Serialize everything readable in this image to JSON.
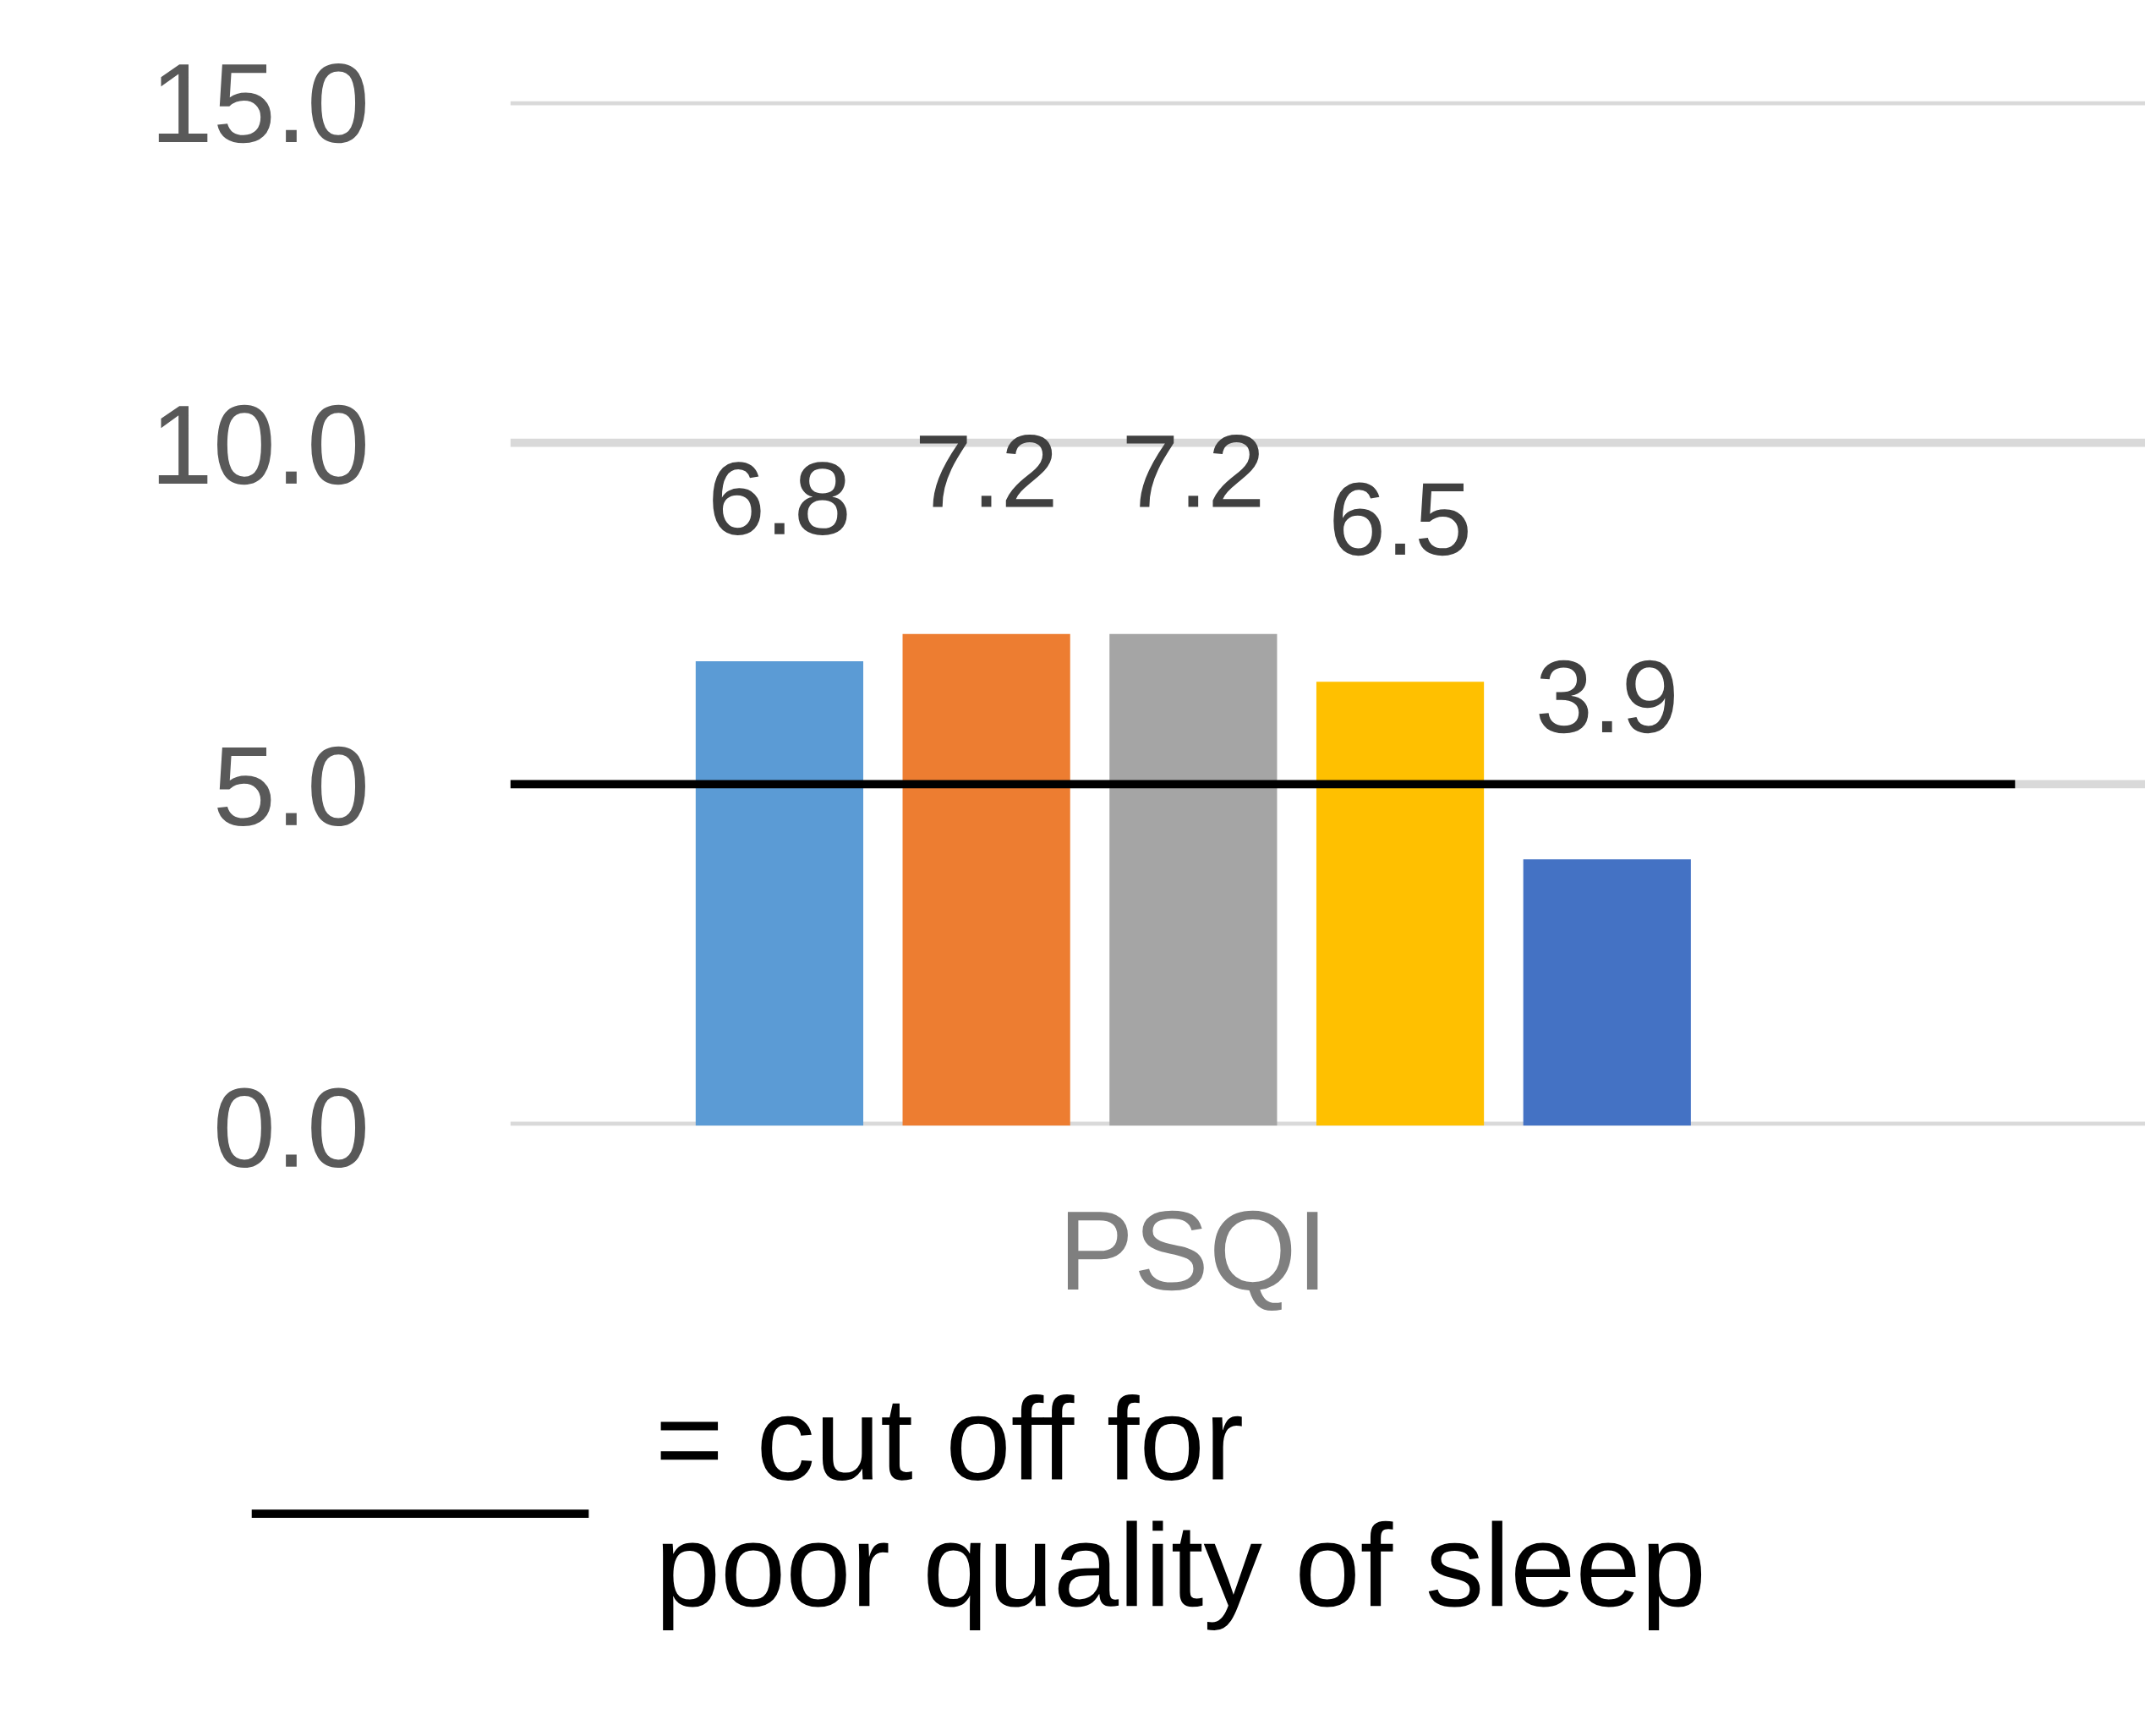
{
  "chart_data": {
    "type": "bar",
    "categories": [
      null,
      null,
      null,
      null,
      null
    ],
    "xlabel": "PSQI",
    "values": [
      6.8,
      7.2,
      7.2,
      6.5,
      3.9
    ],
    "colors": [
      "#5b9bd5",
      "#ed7d31",
      "#a5a5a5",
      "#ffc000",
      "#4472c4"
    ],
    "ylim": [
      0,
      15
    ],
    "yticks": [
      {
        "value": 0,
        "label": "0.0"
      },
      {
        "value": 5,
        "label": "5.0"
      },
      {
        "value": 10,
        "label": "10.0"
      },
      {
        "value": 15,
        "label": "15.0"
      }
    ],
    "grid": "y",
    "data_labels": true,
    "legend": "bottom",
    "ref_lines": [
      {
        "axis": "y",
        "value": 5,
        "label": "= cut off for\npoor quality of sleep",
        "color": "#000000"
      }
    ]
  }
}
